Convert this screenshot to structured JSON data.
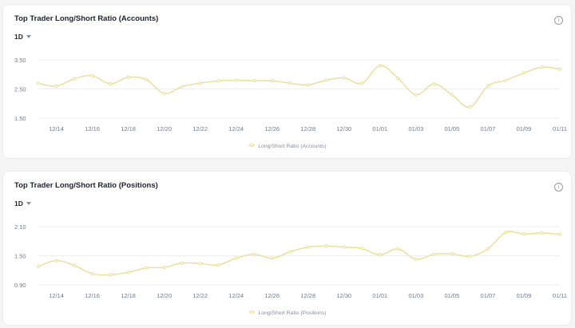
{
  "panels": [
    {
      "title": "Top Trader Long/Short Ratio (Accounts)",
      "interval": "1D",
      "info_icon": "info-icon"
    },
    {
      "title": "Top Trader Long/Short Ratio (Positions)",
      "interval": "1D",
      "info_icon": "info-icon"
    }
  ],
  "chart_data": [
    {
      "type": "line",
      "title": "Top Trader Long/Short Ratio (Accounts)",
      "x": [
        "12/13",
        "12/14",
        "12/15",
        "12/16",
        "12/17",
        "12/18",
        "12/19",
        "12/20",
        "12/21",
        "12/22",
        "12/23",
        "12/24",
        "12/25",
        "12/26",
        "12/27",
        "12/28",
        "12/29",
        "12/30",
        "12/31",
        "01/01",
        "01/02",
        "01/03",
        "01/04",
        "01/05",
        "01/06",
        "01/07",
        "01/08",
        "01/09",
        "01/10",
        "01/11"
      ],
      "x_tick_labels": [
        "12/14",
        "12/16",
        "12/18",
        "12/20",
        "12/22",
        "12/24",
        "12/26",
        "12/28",
        "12/30",
        "01/01",
        "01/03",
        "01/05",
        "01/07",
        "01/09",
        "01/11"
      ],
      "y_ticks": [
        "1.50",
        "2.50",
        "3.50"
      ],
      "ylim": [
        1.5,
        3.5
      ],
      "series": [
        {
          "name": "Long/Short Ratio (Accounts)",
          "color": "#e8de98",
          "values": [
            2.7,
            2.6,
            2.85,
            2.95,
            2.68,
            2.9,
            2.82,
            2.35,
            2.58,
            2.7,
            2.78,
            2.8,
            2.78,
            2.78,
            2.7,
            2.64,
            2.8,
            2.88,
            2.7,
            3.3,
            2.87,
            2.3,
            2.67,
            2.3,
            1.88,
            2.6,
            2.8,
            3.05,
            3.25,
            3.18
          ]
        }
      ],
      "legend": "bottom-center",
      "grid": "horizontal"
    },
    {
      "type": "line",
      "title": "Top Trader Long/Short Ratio (Positions)",
      "x": [
        "12/13",
        "12/14",
        "12/15",
        "12/16",
        "12/17",
        "12/18",
        "12/19",
        "12/20",
        "12/21",
        "12/22",
        "12/23",
        "12/24",
        "12/25",
        "12/26",
        "12/27",
        "12/28",
        "12/29",
        "12/30",
        "12/31",
        "01/01",
        "01/02",
        "01/03",
        "01/04",
        "01/05",
        "01/06",
        "01/07",
        "01/08",
        "01/09",
        "01/10",
        "01/11"
      ],
      "x_tick_labels": [
        "12/14",
        "12/16",
        "12/18",
        "12/20",
        "12/22",
        "12/24",
        "12/26",
        "12/28",
        "12/30",
        "01/01",
        "01/03",
        "01/05",
        "01/07",
        "01/09",
        "01/11"
      ],
      "y_ticks": [
        "0.90",
        "1.50",
        "2.10"
      ],
      "ylim": [
        0.9,
        2.1
      ],
      "series": [
        {
          "name": "Long/Short Ratio (Positions)",
          "color": "#e8de98",
          "values": [
            1.28,
            1.4,
            1.3,
            1.13,
            1.11,
            1.16,
            1.25,
            1.26,
            1.35,
            1.34,
            1.31,
            1.45,
            1.53,
            1.45,
            1.58,
            1.68,
            1.7,
            1.68,
            1.65,
            1.52,
            1.64,
            1.43,
            1.53,
            1.54,
            1.49,
            1.64,
            1.98,
            1.95,
            1.97,
            1.94
          ]
        }
      ],
      "legend": "bottom-center",
      "grid": "horizontal"
    }
  ]
}
